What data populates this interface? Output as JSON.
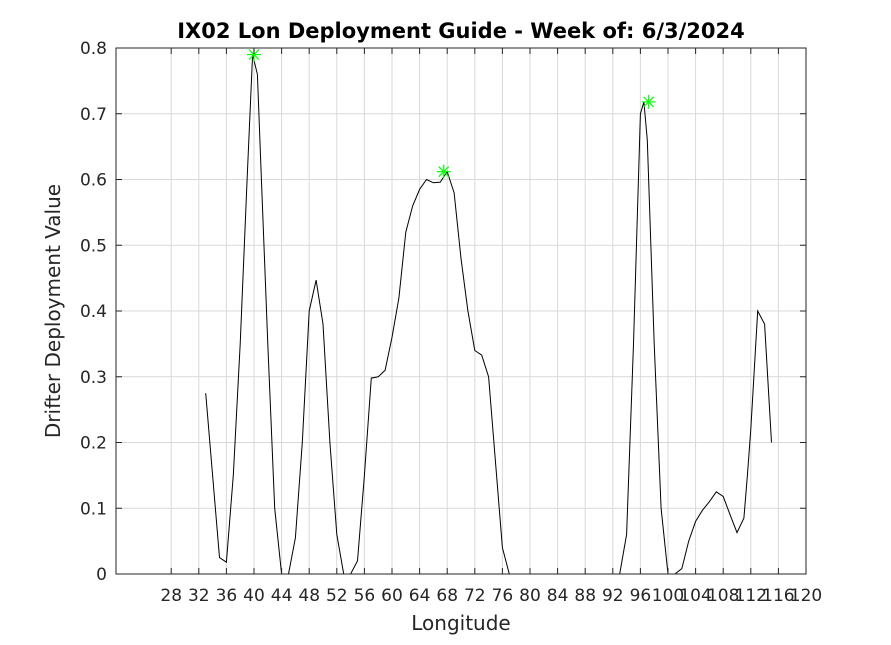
{
  "chart_data": {
    "type": "line",
    "title": "IX02 Lon Deployment Guide - Week of: 6/3/2024",
    "xlabel": "Longitude",
    "ylabel": "Drifter Deployment Value",
    "xlim": [
      20,
      120
    ],
    "ylim": [
      0,
      0.8
    ],
    "xticks": [
      28,
      32,
      36,
      40,
      44,
      48,
      52,
      56,
      60,
      64,
      68,
      72,
      76,
      80,
      84,
      88,
      92,
      96,
      100,
      104,
      108,
      112,
      116,
      120
    ],
    "yticks": [
      0,
      0.1,
      0.2,
      0.3,
      0.4,
      0.5,
      0.6,
      0.7,
      0.8
    ],
    "ytick_labels": [
      "0",
      "0.1",
      "0.2",
      "0.3",
      "0.4",
      "0.5",
      "0.6",
      "0.7",
      "0.8"
    ],
    "grid": true,
    "series_color": "#000000",
    "marker_color": "#00ff00",
    "series": [
      {
        "x": [
          33,
          34,
          35,
          36,
          37,
          38,
          39,
          39.8,
          40.5,
          41,
          42,
          43,
          44,
          45,
          46,
          47,
          48,
          49,
          50,
          51,
          52,
          53,
          54,
          55,
          56,
          57,
          58,
          59,
          60,
          61,
          62,
          63,
          64,
          65,
          66,
          67,
          68,
          69,
          70,
          71,
          72,
          73,
          74,
          75,
          76,
          77,
          78,
          79,
          80,
          81,
          82,
          83,
          84,
          85,
          86,
          87,
          88,
          89,
          90,
          91,
          92,
          93,
          94,
          95,
          96,
          96.5,
          97,
          98,
          99,
          100,
          101,
          102,
          103,
          104,
          105,
          106,
          107,
          108,
          109,
          110,
          111,
          111.5,
          112,
          113,
          114,
          115
        ],
        "y": [
          0.275,
          0.15,
          0.025,
          0.018,
          0.15,
          0.35,
          0.6,
          0.79,
          0.76,
          0.62,
          0.35,
          0.1,
          0.0,
          0.0,
          0.055,
          0.2,
          0.4,
          0.447,
          0.38,
          0.2,
          0.06,
          0.0,
          0.0,
          0.02,
          0.15,
          0.298,
          0.3,
          0.31,
          0.36,
          0.42,
          0.52,
          0.56,
          0.585,
          0.6,
          0.595,
          0.596,
          0.612,
          0.58,
          0.48,
          0.4,
          0.34,
          0.333,
          0.3,
          0.17,
          0.04,
          0.0,
          0.0,
          0.0,
          0.0,
          0.0,
          0.0,
          0.0,
          0.0,
          0.0,
          0.0,
          0.0,
          0.0,
          0.0,
          0.0,
          0.0,
          0.0,
          0.0,
          0.06,
          0.35,
          0.7,
          0.718,
          0.66,
          0.35,
          0.1,
          0.0,
          0.0,
          0.008,
          0.05,
          0.08,
          0.097,
          0.11,
          0.125,
          0.118,
          0.09,
          0.063,
          0.085,
          0.15,
          0.22,
          0.4,
          0.38,
          0.2
        ]
      }
    ],
    "markers": [
      {
        "x": 40,
        "y": 0.79
      },
      {
        "x": 67.5,
        "y": 0.612
      },
      {
        "x": 97.2,
        "y": 0.718
      }
    ]
  }
}
